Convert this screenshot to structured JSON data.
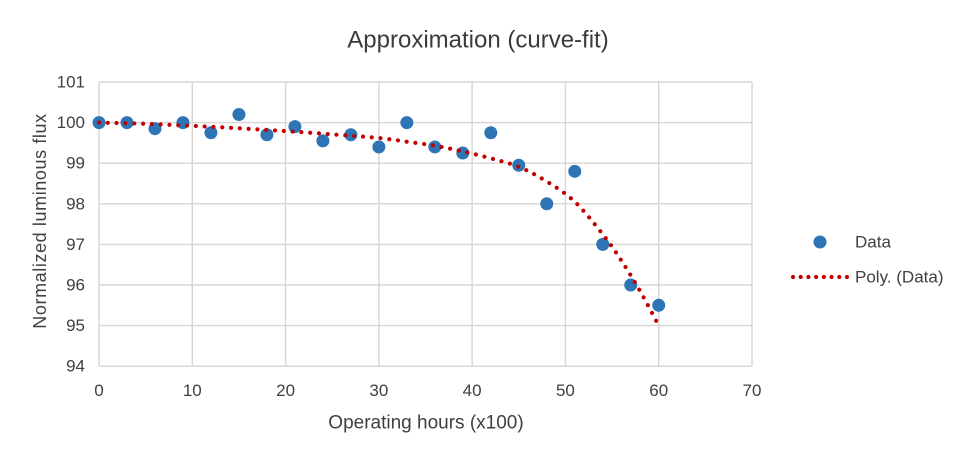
{
  "chart_data": {
    "type": "scatter",
    "title": "Approximation (curve-fit)",
    "xlabel": "Operating hours (x100)",
    "ylabel": "Normalized luminous flux",
    "xlim": [
      0,
      70
    ],
    "ylim": [
      94,
      101
    ],
    "x_ticks": [
      0,
      10,
      20,
      30,
      40,
      50,
      60,
      70
    ],
    "y_ticks": [
      94,
      95,
      96,
      97,
      98,
      99,
      100,
      101
    ],
    "grid": "on",
    "legend_position": "right-middle",
    "legend": [
      "Data",
      "Poly. (Data)"
    ],
    "series": [
      {
        "name": "Data",
        "type": "scatter",
        "marker": "circle",
        "color": "#2E75B6",
        "x": [
          0,
          3,
          6,
          9,
          12,
          15,
          18,
          21,
          24,
          27,
          30,
          33,
          36,
          39,
          42,
          45,
          48,
          51,
          54,
          57,
          60
        ],
        "y": [
          100,
          100,
          99.85,
          100,
          99.75,
          100.2,
          99.7,
          99.9,
          99.55,
          99.7,
          99.4,
          100,
          99.4,
          99.25,
          99.75,
          98.95,
          98,
          98.8,
          97,
          96,
          95.5
        ]
      },
      {
        "name": "Poly. (Data)",
        "type": "dotted_trendline",
        "color": "#C00000",
        "x": [
          0,
          5,
          10,
          15,
          20,
          25,
          30,
          33,
          36,
          39,
          42,
          45,
          48,
          51,
          54,
          56,
          58,
          60
        ],
        "y": [
          100,
          99.97,
          99.92,
          99.86,
          99.79,
          99.71,
          99.62,
          99.53,
          99.43,
          99.29,
          99.12,
          98.91,
          98.55,
          98.05,
          97.25,
          96.6,
          95.85,
          95.0
        ]
      }
    ]
  },
  "colors": {
    "marker_blue": "#2E75B6",
    "trend_red": "#C00000",
    "gridline_gray": "#D6D6D6",
    "text_gray": "#404040",
    "background": "#FFFFFF"
  }
}
